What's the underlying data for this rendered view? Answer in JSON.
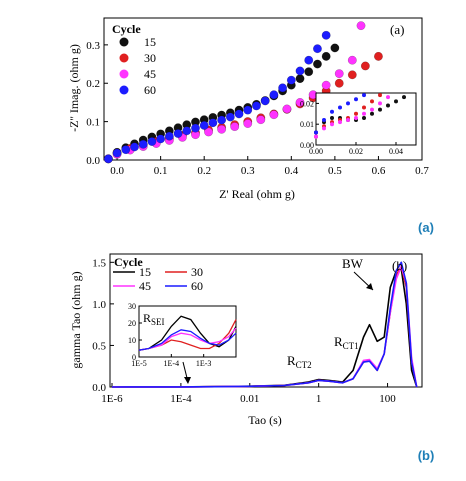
{
  "chart_data": [
    {
      "type": "scatter",
      "panel_label": "(a)",
      "caption": "(a)",
      "xlabel": "Z' Real (ohm g)",
      "ylabel": "-Z'' Imag. (ohm g)",
      "xlim": [
        -0.03,
        0.7
      ],
      "ylim": [
        0,
        0.37
      ],
      "xticks": [
        "0.0",
        "0.1",
        "0.2",
        "0.3",
        "0.4",
        "0.5",
        "0.6",
        "0.7"
      ],
      "yticks": [
        "0.0",
        "0.1",
        "0.2",
        "0.3"
      ],
      "legend_title": "Cycle",
      "legend_position": "top-left",
      "series": [
        {
          "name": "15",
          "color": "#111111",
          "x": [
            -0.02,
            0.0,
            0.02,
            0.04,
            0.06,
            0.08,
            0.1,
            0.12,
            0.14,
            0.16,
            0.18,
            0.2,
            0.22,
            0.24,
            0.26,
            0.28,
            0.3,
            0.32,
            0.34,
            0.36,
            0.38,
            0.4,
            0.42,
            0.44,
            0.46,
            0.48,
            0.5
          ],
          "y": [
            0.003,
            0.02,
            0.032,
            0.042,
            0.052,
            0.06,
            0.068,
            0.076,
            0.084,
            0.092,
            0.099,
            0.105,
            0.111,
            0.117,
            0.123,
            0.13,
            0.137,
            0.145,
            0.155,
            0.167,
            0.18,
            0.195,
            0.212,
            0.23,
            0.25,
            0.27,
            0.292
          ]
        },
        {
          "name": "30",
          "color": "#e02020",
          "x": [
            -0.02,
            0.0,
            0.03,
            0.06,
            0.09,
            0.12,
            0.15,
            0.18,
            0.21,
            0.24,
            0.27,
            0.3,
            0.33,
            0.36,
            0.39,
            0.42,
            0.45,
            0.48,
            0.51,
            0.54,
            0.57,
            0.6
          ],
          "y": [
            0.003,
            0.018,
            0.03,
            0.04,
            0.048,
            0.056,
            0.064,
            0.071,
            0.078,
            0.085,
            0.092,
            0.1,
            0.11,
            0.12,
            0.132,
            0.146,
            0.162,
            0.18,
            0.2,
            0.222,
            0.245,
            0.27
          ]
        },
        {
          "name": "45",
          "color": "#ff33ff",
          "x": [
            -0.02,
            0.0,
            0.03,
            0.06,
            0.09,
            0.12,
            0.15,
            0.18,
            0.21,
            0.24,
            0.27,
            0.3,
            0.33,
            0.36,
            0.39,
            0.42,
            0.45,
            0.48,
            0.51,
            0.54,
            0.56
          ],
          "y": [
            0.003,
            0.015,
            0.026,
            0.035,
            0.043,
            0.051,
            0.059,
            0.066,
            0.073,
            0.08,
            0.087,
            0.095,
            0.105,
            0.118,
            0.133,
            0.15,
            0.17,
            0.195,
            0.225,
            0.26,
            0.35
          ]
        },
        {
          "name": "60",
          "color": "#1c1cff",
          "x": [
            -0.02,
            0.0,
            0.02,
            0.04,
            0.06,
            0.08,
            0.1,
            0.12,
            0.14,
            0.16,
            0.18,
            0.2,
            0.22,
            0.24,
            0.26,
            0.28,
            0.3,
            0.32,
            0.34,
            0.36,
            0.38,
            0.4,
            0.42,
            0.44,
            0.46,
            0.48
          ],
          "y": [
            0.003,
            0.018,
            0.027,
            0.034,
            0.041,
            0.048,
            0.055,
            0.062,
            0.069,
            0.076,
            0.083,
            0.09,
            0.097,
            0.104,
            0.112,
            0.12,
            0.13,
            0.141,
            0.154,
            0.17,
            0.188,
            0.208,
            0.232,
            0.26,
            0.29,
            0.325
          ]
        }
      ],
      "inset": {
        "xlim": [
          0.0,
          0.05
        ],
        "ylim": [
          0.0,
          0.025
        ],
        "xticks": [
          "0.00",
          "0.02",
          "0.04"
        ],
        "yticks": [
          "0.00",
          "0.01",
          "0.02"
        ],
        "series": [
          {
            "name": "15",
            "x": [
              0.0,
              0.004,
              0.008,
              0.012,
              0.016,
              0.02,
              0.024,
              0.028,
              0.032,
              0.036,
              0.04,
              0.044
            ],
            "y": [
              0.006,
              0.011,
              0.013,
              0.013,
              0.012,
              0.012,
              0.013,
              0.015,
              0.017,
              0.019,
              0.021,
              0.023
            ]
          },
          {
            "name": "30",
            "x": [
              0.0,
              0.004,
              0.008,
              0.012,
              0.016,
              0.02,
              0.024,
              0.028,
              0.032
            ],
            "y": [
              0.004,
              0.009,
              0.011,
              0.012,
              0.013,
              0.015,
              0.018,
              0.021,
              0.024
            ]
          },
          {
            "name": "45",
            "x": [
              0.0,
              0.004,
              0.008,
              0.012,
              0.016,
              0.02,
              0.024,
              0.028,
              0.032,
              0.036
            ],
            "y": [
              0.004,
              0.008,
              0.01,
              0.011,
              0.012,
              0.013,
              0.015,
              0.017,
              0.02,
              0.023
            ]
          },
          {
            "name": "60",
            "x": [
              0.0,
              0.004,
              0.008,
              0.012,
              0.016,
              0.02,
              0.024
            ],
            "y": [
              0.006,
              0.012,
              0.016,
              0.018,
              0.02,
              0.022,
              0.024
            ]
          }
        ]
      }
    },
    {
      "type": "line",
      "panel_label": "(b)",
      "caption": "(b)",
      "xlabel": "Tao (s)",
      "ylabel": "gamma Tao (ohm g)",
      "x_scale": "log",
      "xlim": [
        1e-06,
        1000
      ],
      "ylim": [
        0,
        1.6
      ],
      "xticks": [
        "1E-6",
        "1E-4",
        "0.01",
        "1",
        "100"
      ],
      "yticks": [
        "0.0",
        "0.5",
        "1.0",
        "1.5"
      ],
      "legend_title": "Cycle",
      "legend_position": "top-left",
      "annotations": [
        {
          "text": "BW"
        },
        {
          "text": "R",
          "subscript": "CT1"
        },
        {
          "text": "R",
          "subscript": "CT2"
        }
      ],
      "series": [
        {
          "name": "15",
          "color": "#000000",
          "x": [
            1e-06,
            0.0001,
            0.001,
            0.01,
            0.1,
            0.5,
            1,
            2,
            5,
            10,
            20,
            30,
            50,
            80,
            120,
            180,
            250,
            350,
            500,
            700
          ],
          "y": [
            0,
            0.001,
            0.005,
            0.01,
            0.02,
            0.06,
            0.09,
            0.08,
            0.06,
            0.2,
            0.6,
            0.75,
            0.55,
            0.6,
            1.2,
            1.4,
            1.42,
            1.0,
            0.2,
            0.0
          ]
        },
        {
          "name": "30",
          "color": "#e02020",
          "x": [
            1e-06,
            0.0001,
            0.001,
            0.01,
            0.1,
            0.5,
            1,
            2,
            5,
            10,
            20,
            30,
            50,
            80,
            120,
            180,
            250,
            350,
            500,
            700
          ],
          "y": [
            0,
            0.001,
            0.004,
            0.008,
            0.018,
            0.05,
            0.08,
            0.07,
            0.05,
            0.1,
            0.3,
            0.32,
            0.2,
            0.4,
            0.9,
            1.35,
            1.45,
            1.2,
            0.3,
            0.0
          ]
        },
        {
          "name": "45",
          "color": "#ff33ff",
          "x": [
            1e-06,
            0.0001,
            0.001,
            0.01,
            0.1,
            0.5,
            1,
            2,
            5,
            10,
            20,
            30,
            50,
            80,
            120,
            180,
            250,
            350,
            500,
            700
          ],
          "y": [
            0,
            0.001,
            0.004,
            0.008,
            0.018,
            0.05,
            0.08,
            0.07,
            0.05,
            0.1,
            0.32,
            0.33,
            0.22,
            0.4,
            0.9,
            1.3,
            1.45,
            1.25,
            0.35,
            0.0
          ]
        },
        {
          "name": "60",
          "color": "#1c1cff",
          "x": [
            1e-06,
            0.0001,
            0.001,
            0.01,
            0.1,
            0.5,
            1,
            2,
            5,
            10,
            20,
            30,
            50,
            80,
            120,
            180,
            250,
            350,
            500,
            700
          ],
          "y": [
            0,
            0.001,
            0.004,
            0.008,
            0.018,
            0.05,
            0.08,
            0.07,
            0.05,
            0.1,
            0.3,
            0.31,
            0.2,
            0.4,
            0.95,
            1.4,
            1.5,
            1.25,
            0.3,
            0.0
          ]
        }
      ],
      "inset": {
        "label": "R",
        "label_subscript": "SEI",
        "x_scale": "log",
        "xlim": [
          1e-05,
          0.01
        ],
        "ylim": [
          0,
          30
        ],
        "xticks": [
          "1E-5",
          "1E-4",
          "1E-3"
        ],
        "yticks": [
          "0",
          "10",
          "20",
          "30"
        ],
        "series": [
          {
            "name": "15",
            "x": [
              1e-05,
              2e-05,
              5e-05,
              0.0001,
              0.0002,
              0.0004,
              0.0008,
              0.0015,
              0.003,
              0.006,
              0.01
            ],
            "y": [
              4,
              5,
              10,
              18,
              24,
              22,
              14,
              8,
              6,
              10,
              18
            ]
          },
          {
            "name": "30",
            "x": [
              1e-05,
              2e-05,
              5e-05,
              0.0001,
              0.0002,
              0.0004,
              0.0008,
              0.0015,
              0.003,
              0.006,
              0.01
            ],
            "y": [
              4,
              5,
              7,
              10,
              9,
              7,
              5,
              5,
              8,
              14,
              22
            ]
          },
          {
            "name": "45",
            "x": [
              1e-05,
              2e-05,
              5e-05,
              0.0001,
              0.0002,
              0.0004,
              0.0008,
              0.0015,
              0.003,
              0.006,
              0.01
            ],
            "y": [
              4,
              5,
              7,
              12,
              14,
              13,
              10,
              8,
              9,
              12,
              17
            ]
          },
          {
            "name": "60",
            "x": [
              1e-05,
              2e-05,
              5e-05,
              0.0001,
              0.0002,
              0.0004,
              0.0008,
              0.0015,
              0.003,
              0.006,
              0.01
            ],
            "y": [
              4,
              5,
              8,
              13,
              16,
              15,
              11,
              8,
              7,
              10,
              14
            ]
          }
        ]
      }
    }
  ]
}
